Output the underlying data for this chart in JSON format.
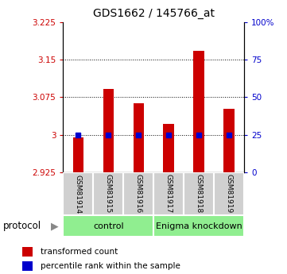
{
  "title": "GDS1662 / 145766_at",
  "samples": [
    "GSM81914",
    "GSM81915",
    "GSM81916",
    "GSM81917",
    "GSM81918",
    "GSM81919"
  ],
  "red_values": [
    2.995,
    3.092,
    3.063,
    3.022,
    3.168,
    3.052
  ],
  "blue_values": [
    25,
    25,
    25,
    25,
    25,
    25
  ],
  "ylim_left": [
    2.925,
    3.225
  ],
  "ylim_right": [
    0,
    100
  ],
  "yticks_left": [
    2.925,
    3.0,
    3.075,
    3.15,
    3.225
  ],
  "ytick_labels_left": [
    "2.925",
    "3",
    "3.075",
    "3.15",
    "3.225"
  ],
  "yticks_right": [
    0,
    25,
    50,
    75,
    100
  ],
  "ytick_labels_right": [
    "0",
    "25",
    "50",
    "75",
    "100%"
  ],
  "gridlines_at": [
    3.0,
    3.075,
    3.15
  ],
  "bar_color": "#cc0000",
  "dot_color": "#0000cc",
  "control_label": "control",
  "knockdown_label": "Enigma knockdown",
  "protocol_label": "protocol",
  "legend_red": "transformed count",
  "legend_blue": "percentile rank within the sample"
}
